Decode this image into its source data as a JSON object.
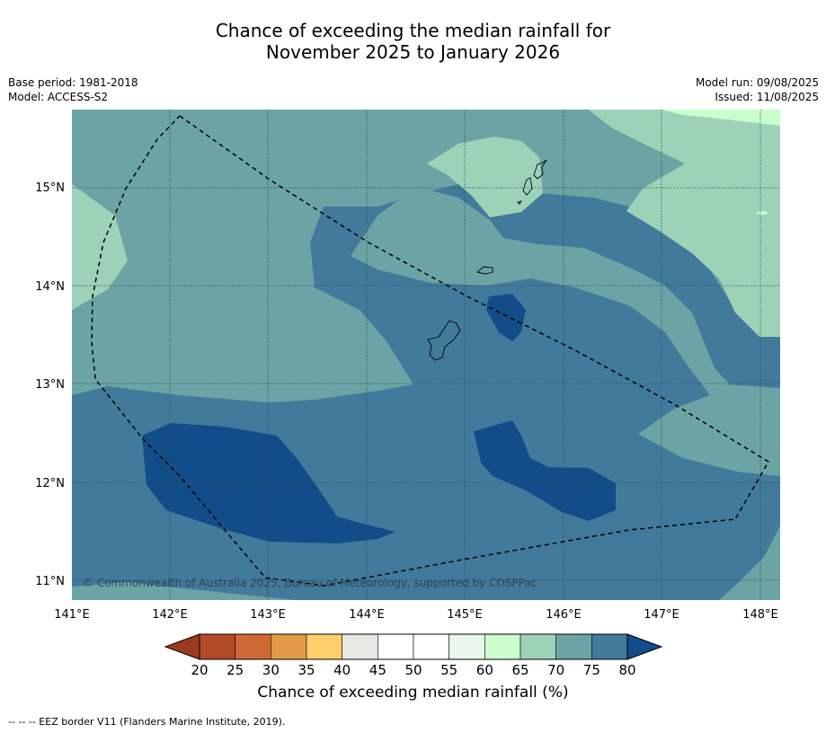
{
  "title": {
    "line1": "Chance of exceeding the median rainfall for",
    "line2": "November 2025 to January 2026"
  },
  "meta_left": {
    "base_period": "Base period: 1981-2018",
    "model": "Model: ACCESS-S2"
  },
  "meta_right": {
    "model_run": "Model run: 09/08/2025",
    "issued": "Issued: 11/08/2025"
  },
  "map": {
    "x_ticks": [
      "141°E",
      "142°E",
      "143°E",
      "144°E",
      "145°E",
      "146°E",
      "147°E",
      "148°E"
    ],
    "y_ticks": [
      "15°N",
      "14°N",
      "13°N",
      "12°N",
      "11°N"
    ],
    "lon_range": [
      141,
      148.2
    ],
    "lat_range": [
      10.8,
      15.8
    ],
    "copyright": "© Commonwealth of Australia 2025, Bureau of Meteorology, supported by COSPPac",
    "colors": {
      "c80": "#124d89",
      "c75": "#427a9c",
      "c70": "#6ca4a5",
      "c65": "#9dd2b9",
      "c60": "#cbfdcd"
    }
  },
  "colorbar": {
    "label": "Chance of exceeding median rainfall (%)",
    "tick_labels": [
      "20",
      "25",
      "30",
      "35",
      "40",
      "45",
      "50",
      "55",
      "60",
      "65",
      "70",
      "75",
      "80"
    ],
    "colors": [
      "#b14b28",
      "#d06834",
      "#e39a48",
      "#ffd06a",
      "#e8e8e3",
      "#ffffff",
      "#ffffff",
      "#eaf8eb",
      "#cbfdcd",
      "#9dd2b9",
      "#6ca4a5",
      "#427a9c"
    ],
    "under_color": "#9b3a21",
    "over_color": "#124d89"
  },
  "footer": "-- -- -- EEZ border V11 (Flanders Marine Institute, 2019)."
}
